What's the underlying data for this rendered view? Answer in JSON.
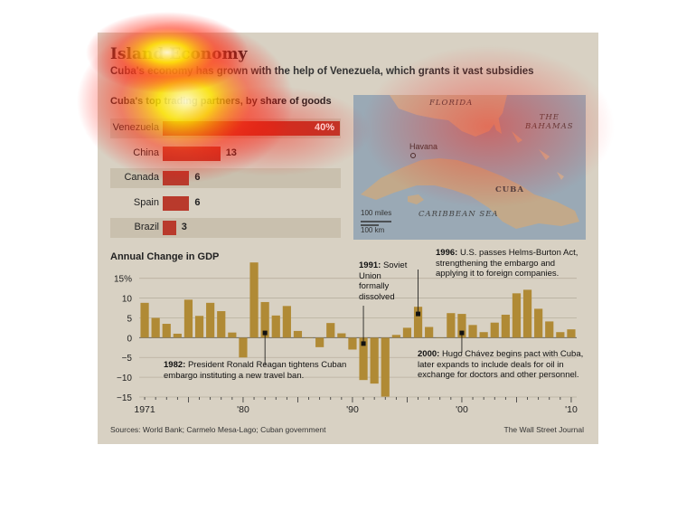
{
  "header": {
    "title": "Island Economy",
    "subtitle": "Cuba's economy has grown with the help of Venezuela, which grants it vast subsidies"
  },
  "partners": {
    "heading": "Cuba's top trading partners, by share of goods",
    "items": [
      {
        "name": "Venezuela",
        "value": 40,
        "label": "40%"
      },
      {
        "name": "China",
        "value": 13,
        "label": "13"
      },
      {
        "name": "Canada",
        "value": 6,
        "label": "6"
      },
      {
        "name": "Spain",
        "value": 6,
        "label": "6"
      },
      {
        "name": "Brazil",
        "value": 3,
        "label": "3"
      }
    ],
    "bar_color": "#b93a2c"
  },
  "map": {
    "labels": {
      "florida": "FLORIDA",
      "bahamas_line1": "THE",
      "bahamas_line2": "BAHAMAS",
      "cuba": "CUBA",
      "sea": "CARIBBEAN SEA",
      "city": "Havana"
    },
    "scale": {
      "miles": "100 miles",
      "km": "100 km"
    }
  },
  "chart_data": {
    "type": "bar",
    "title": "Annual Change in GDP",
    "unit": "%",
    "x": [
      1971,
      1972,
      1973,
      1974,
      1975,
      1976,
      1977,
      1978,
      1979,
      1980,
      1981,
      1982,
      1983,
      1984,
      1985,
      1986,
      1987,
      1988,
      1989,
      1990,
      1991,
      1992,
      1993,
      1994,
      1995,
      1996,
      1997,
      1998,
      1999,
      2000,
      2001,
      2002,
      2003,
      2004,
      2005,
      2006,
      2007,
      2008,
      2009,
      2010
    ],
    "values": [
      8.8,
      5,
      3.5,
      1,
      9.6,
      5.5,
      8.8,
      6.7,
      1.3,
      -5,
      19,
      9,
      5.6,
      8,
      1.7,
      0,
      -2.4,
      3.7,
      1.1,
      -3,
      -10.7,
      -11.6,
      -14.9,
      0.7,
      2.5,
      7.8,
      2.7,
      0,
      6.2,
      6,
      3.2,
      1.4,
      3.8,
      5.8,
      11.2,
      12.1,
      7.3,
      4.1,
      1.4,
      2.1
    ],
    "ylim": [
      -15,
      19.5
    ],
    "yticks": [
      15,
      10,
      5,
      0,
      -5,
      -10,
      -15
    ],
    "ytick_labels": [
      "15%",
      "10",
      "5",
      "0",
      "−5",
      "−10",
      "−15"
    ],
    "xtick_labels": [
      {
        "year": 1971,
        "label": "1971"
      },
      {
        "year": 1980,
        "label": "'80"
      },
      {
        "year": 1990,
        "label": "'90"
      },
      {
        "year": 2000,
        "label": "'00"
      },
      {
        "year": 2010,
        "label": "'10"
      }
    ],
    "bar_color": "#b08a35",
    "annotations": [
      {
        "year": 1982,
        "value": 1.2,
        "bold": "1982:",
        "text": "President Ronald Reagan tightens Cuban embargo instituting a new travel ban."
      },
      {
        "year": 1991,
        "value": -1.5,
        "bold": "1991:",
        "text": "Soviet Union formally dissolved"
      },
      {
        "year": 1996,
        "value": 6,
        "bold": "1996:",
        "text": "U.S. passes Helms-Burton Act, strengthening the embargo and applying it to foreign companies."
      },
      {
        "year": 2000,
        "value": 1.2,
        "bold": "2000:",
        "text": "Hugo Chávez begins pact with Cuba, later expands to include deals for oil in exchange for doctors and other personnel."
      }
    ]
  },
  "footer": {
    "sources": "Sources: World Bank; Carmelo Mesa-Lago; Cuban government",
    "credit": "The Wall Street Journal"
  }
}
